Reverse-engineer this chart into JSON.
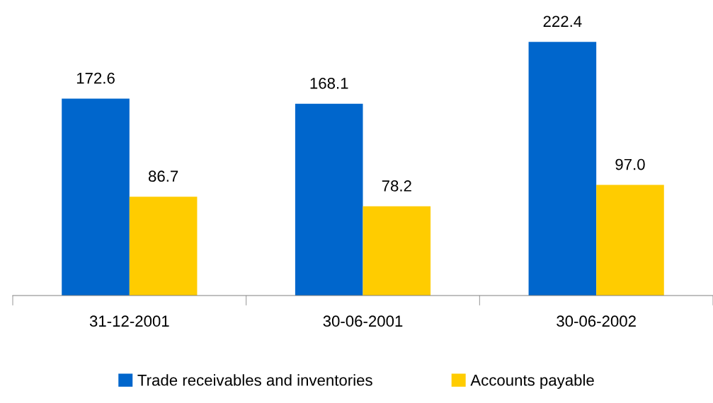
{
  "chart_data": {
    "type": "bar",
    "categories": [
      "31-12-2001",
      "30-06-2001",
      "30-06-2002"
    ],
    "series": [
      {
        "name": "Trade receivables and inventories",
        "color": "#0066cc",
        "values": [
          172.6,
          168.1,
          222.4
        ],
        "value_labels": [
          "172.6",
          "168.1",
          "222.4"
        ]
      },
      {
        "name": "Accounts payable",
        "color": "#ffcc00",
        "values": [
          86.7,
          78.2,
          97.0
        ],
        "value_labels": [
          "86.7",
          "78.2",
          "97.0"
        ]
      }
    ],
    "grid": false,
    "legend": "bottom",
    "tick_labels": "x"
  }
}
